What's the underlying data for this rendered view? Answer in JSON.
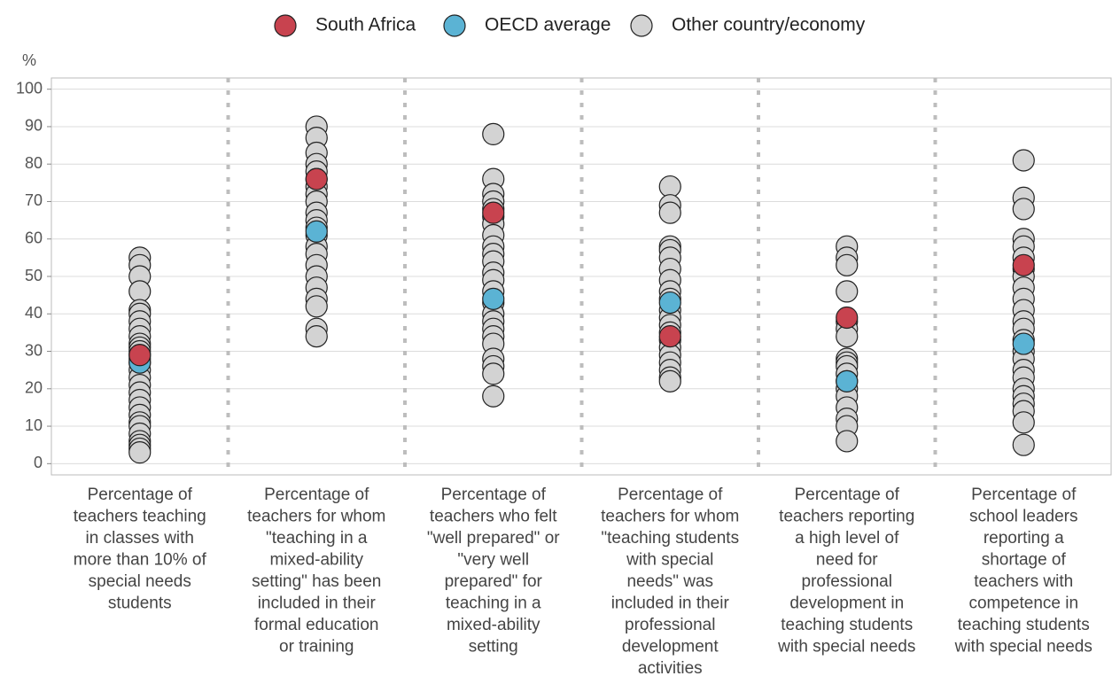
{
  "chart_data": {
    "type": "strip",
    "y_unit": "%",
    "categories": [
      [
        "Percentage of",
        "teachers teaching",
        "in classes with",
        "more than 10% of",
        "special needs",
        "students"
      ],
      [
        "Percentage of",
        "teachers for whom",
        "\"teaching in a",
        "mixed-ability",
        "setting\" has been",
        "included in their",
        "formal education",
        "or training"
      ],
      [
        "Percentage of",
        "teachers who felt",
        "\"well prepared\" or",
        "\"very well",
        "prepared\" for",
        "teaching in a",
        "mixed-ability",
        "setting"
      ],
      [
        "Percentage of",
        "teachers for whom",
        "\"teaching students",
        "with special",
        "needs\" was",
        "included in their",
        "professional",
        "development",
        "activities"
      ],
      [
        "Percentage of",
        "teachers reporting",
        "a high level of",
        "need for",
        "professional",
        "development in",
        "teaching students",
        "with special needs"
      ],
      [
        "Percentage of",
        "school leaders",
        "reporting a",
        "shortage of",
        "teachers with",
        "competence in",
        "teaching students",
        "with special needs"
      ]
    ],
    "series": [
      {
        "name": "Other country/economy",
        "color": "#d3d3d3",
        "values": [
          [
            55,
            53,
            50,
            46,
            41,
            40,
            38,
            36,
            34,
            32,
            31,
            30,
            29,
            28,
            27,
            25,
            23,
            21,
            19,
            17,
            15,
            13,
            11,
            10,
            8,
            6,
            5,
            4,
            3
          ],
          [
            90,
            87,
            83,
            80,
            78,
            76,
            74,
            72,
            70,
            67,
            65,
            63,
            61,
            58,
            56,
            53,
            50,
            47,
            44,
            42,
            36,
            34
          ],
          [
            88,
            76,
            72,
            70,
            68,
            66,
            64,
            61,
            58,
            56,
            54,
            51,
            49,
            46,
            43,
            40,
            38,
            36,
            34,
            32,
            28,
            26,
            24,
            18
          ],
          [
            74,
            69,
            67,
            58,
            57,
            55,
            52,
            49,
            46,
            44,
            41,
            39,
            37,
            35,
            33,
            31,
            29,
            27,
            25,
            23,
            22
          ],
          [
            58,
            55,
            53,
            46,
            38,
            36,
            34,
            28,
            27,
            26,
            24,
            22,
            20,
            18,
            15,
            12,
            10,
            6
          ],
          [
            81,
            71,
            68,
            60,
            58,
            55,
            52,
            50,
            47,
            44,
            41,
            38,
            36,
            33,
            30,
            28,
            25,
            23,
            20,
            18,
            16,
            14,
            11,
            5
          ]
        ]
      },
      {
        "name": "OECD average",
        "color": "#5bb3d4",
        "values": [
          27,
          62,
          44,
          43,
          22,
          32
        ]
      },
      {
        "name": "South Africa",
        "color": "#c8434f",
        "values": [
          29,
          76,
          67,
          34,
          39,
          53
        ]
      }
    ],
    "legend_order": [
      2,
      1,
      0
    ],
    "ylim": [
      -3,
      103
    ],
    "yticks": [
      0,
      10,
      20,
      30,
      40,
      50,
      60,
      70,
      80,
      90,
      100
    ],
    "grid": true
  }
}
